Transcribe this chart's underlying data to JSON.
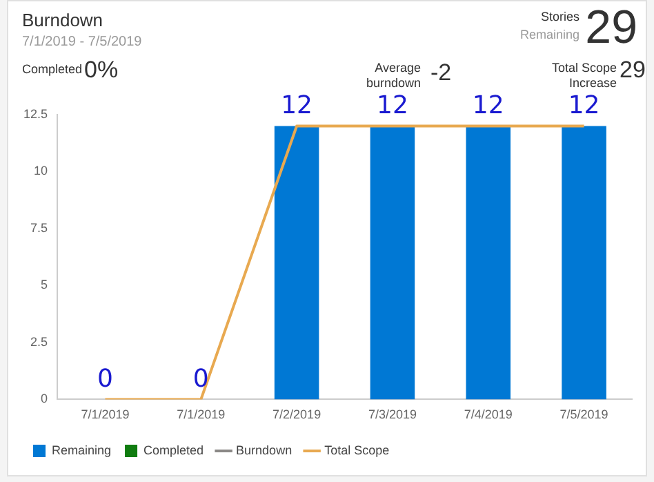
{
  "chart_data": {
    "type": "bar",
    "title": "Burndown",
    "subtitle": "7/1/2019 - 7/5/2019",
    "annotations": [
      "Stories",
      "Remaining",
      "29",
      "Completed",
      "0%",
      "Average burndown",
      "-2",
      "Total Scope Increase",
      "29"
    ],
    "categories": [
      "7/1/2019",
      "7/1/2019",
      "7/2/2019",
      "7/3/2019",
      "7/4/2019",
      "7/5/2019"
    ],
    "series": [
      {
        "name": "Remaining",
        "color": "#0078d4",
        "values": [
          0,
          0,
          12,
          12,
          12,
          12
        ],
        "value_labels": [
          "0",
          "0",
          "12",
          "12",
          "12",
          "12"
        ]
      },
      {
        "name": "Completed",
        "color": "#107c10",
        "values": [
          0,
          0,
          0,
          0,
          0,
          0
        ]
      },
      {
        "name": "Burndown",
        "type": "line",
        "color": "#8a8886",
        "values": [
          null,
          null,
          null,
          null,
          null,
          null
        ]
      },
      {
        "name": "Total Scope",
        "type": "line",
        "color": "#e8a950",
        "values": [
          0,
          0,
          12,
          12,
          12,
          12
        ]
      }
    ],
    "ylim": [
      0,
      12.5
    ],
    "yticks": [
      0,
      2.5,
      5,
      7.5,
      10,
      12.5
    ],
    "grid": false,
    "legend": "bottom",
    "marker": "none",
    "stacked": true
  }
}
